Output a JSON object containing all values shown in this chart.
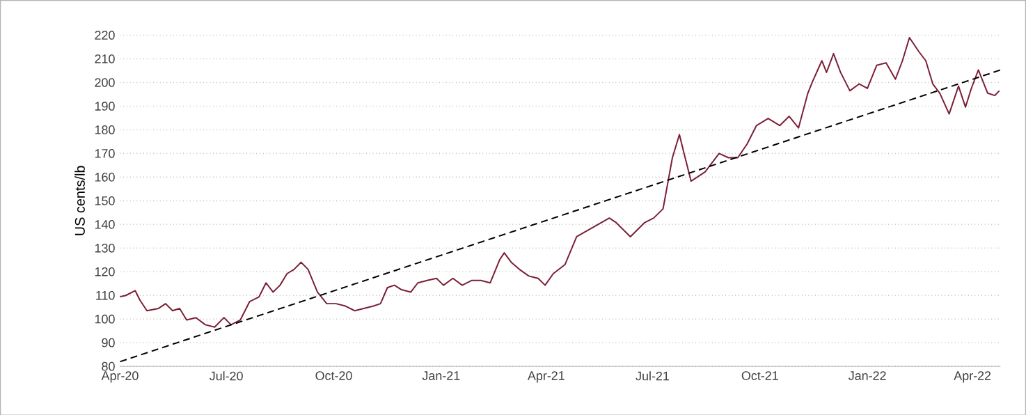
{
  "chart_data": {
    "type": "line",
    "ylabel": "US cents/lb",
    "series": [
      {
        "color": "#7b1f35",
        "x": [
          "2020-04-01",
          "2020-04-06",
          "2020-04-14",
          "2020-04-18",
          "2020-04-24",
          "2020-05-04",
          "2020-05-10",
          "2020-05-16",
          "2020-05-22",
          "2020-05-28",
          "2020-06-05",
          "2020-06-13",
          "2020-06-21",
          "2020-06-29",
          "2020-07-05",
          "2020-07-13",
          "2020-07-21",
          "2020-07-29",
          "2020-08-04",
          "2020-08-10",
          "2020-08-16",
          "2020-08-22",
          "2020-08-28",
          "2020-09-03",
          "2020-09-09",
          "2020-09-17",
          "2020-09-25",
          "2020-10-03",
          "2020-10-11",
          "2020-10-19",
          "2020-10-27",
          "2020-11-04",
          "2020-11-10",
          "2020-11-16",
          "2020-11-22",
          "2020-11-28",
          "2020-12-06",
          "2020-12-12",
          "2020-12-20",
          "2020-12-28",
          "2021-01-03",
          "2021-01-11",
          "2021-01-19",
          "2021-01-27",
          "2021-02-04",
          "2021-02-12",
          "2021-02-20",
          "2021-02-24",
          "2021-03-02",
          "2021-03-09",
          "2021-03-17",
          "2021-03-25",
          "2021-03-31",
          "2021-04-07",
          "2021-04-17",
          "2021-04-27",
          "2021-05-25",
          "2021-05-31",
          "2021-06-12",
          "2021-06-24",
          "2021-07-02",
          "2021-07-10",
          "2021-07-18",
          "2021-07-24",
          "2021-07-28",
          "2021-08-03",
          "2021-08-15",
          "2021-08-27",
          "2021-09-04",
          "2021-09-12",
          "2021-09-20",
          "2021-09-28",
          "2021-10-08",
          "2021-10-18",
          "2021-10-26",
          "2021-11-03",
          "2021-11-11",
          "2021-11-15",
          "2021-11-23",
          "2021-11-27",
          "2021-12-03",
          "2021-12-09",
          "2021-12-17",
          "2021-12-25",
          "2022-01-01",
          "2022-01-09",
          "2022-01-17",
          "2022-01-25",
          "2022-01-31",
          "2022-02-06",
          "2022-02-14",
          "2022-02-20",
          "2022-02-26",
          "2022-03-04",
          "2022-03-12",
          "2022-03-20",
          "2022-03-26",
          "2022-03-31",
          "2022-04-06",
          "2022-04-14",
          "2022-04-20",
          "2022-04-24"
        ],
        "values": [
          109.4,
          110,
          112,
          108,
          103.5,
          104.5,
          106.5,
          103.5,
          104.5,
          99.6,
          100.6,
          97.6,
          96.6,
          100.6,
          97.6,
          99.6,
          107.4,
          109.4,
          115.3,
          111.4,
          114.3,
          119.2,
          121,
          124,
          121,
          111.4,
          106.5,
          106.5,
          105.5,
          103.5,
          104.5,
          105.5,
          106.5,
          113.3,
          114.3,
          112.4,
          111.4,
          115.3,
          116.3,
          117.2,
          114.3,
          117.2,
          114.3,
          116.3,
          116.3,
          115.3,
          125,
          128,
          124,
          121,
          118.2,
          117.2,
          114.3,
          119.2,
          123,
          134.8,
          142.7,
          140.7,
          134.8,
          140.7,
          142.7,
          146.6,
          168.2,
          178,
          170,
          158.3,
          162.2,
          170,
          168.2,
          168.2,
          174,
          181.8,
          184.8,
          181.8,
          185.7,
          180.8,
          195.5,
          200.4,
          209.2,
          204.3,
          212.2,
          204.3,
          196.5,
          199.4,
          197.5,
          207.3,
          208.3,
          201.4,
          209.2,
          219,
          213.1,
          209.2,
          199.4,
          195.5,
          186.7,
          198.5,
          189.6,
          197.5,
          205.3,
          195.5,
          194.5,
          196.5
        ]
      },
      {
        "color": "#000000",
        "line_style": "dashed",
        "x": [
          "2020-04-01",
          "2022-04-25"
        ],
        "values": [
          82,
          205.3
        ]
      }
    ],
    "xlim": [
      "2020-04-01",
      "2022-04-25"
    ],
    "xticks": [
      {
        "value": "2020-04-01",
        "label": "Apr-20"
      },
      {
        "value": "2020-07-01",
        "label": "Jul-20"
      },
      {
        "value": "2020-10-01",
        "label": "Oct-20"
      },
      {
        "value": "2021-01-01",
        "label": "Jan-21"
      },
      {
        "value": "2021-04-01",
        "label": "Apr-21"
      },
      {
        "value": "2021-07-01",
        "label": "Jul-21"
      },
      {
        "value": "2021-10-01",
        "label": "Oct-21"
      },
      {
        "value": "2022-01-01",
        "label": "Jan-22"
      },
      {
        "value": "2022-04-01",
        "label": "Apr-22"
      }
    ],
    "ylim": [
      80,
      220
    ],
    "yticks": [
      80,
      90,
      100,
      110,
      120,
      130,
      140,
      150,
      160,
      170,
      180,
      190,
      200,
      210,
      220
    ],
    "grid": "y",
    "line_style": "solid",
    "marker": "none"
  }
}
